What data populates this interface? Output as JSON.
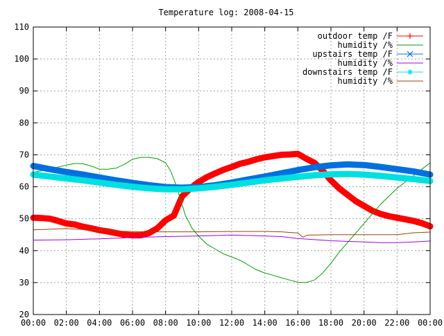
{
  "chart_data": {
    "type": "line",
    "title": "Temperature log: 2008-04-15",
    "xlabel": "",
    "ylabel": "",
    "ylim": [
      20,
      110
    ],
    "xlim": [
      0,
      24
    ],
    "grid": true,
    "legend_position": "top-right",
    "yticks": [
      {
        "value": 20,
        "label": "20"
      },
      {
        "value": 30,
        "label": "30"
      },
      {
        "value": 40,
        "label": "40"
      },
      {
        "value": 50,
        "label": "50"
      },
      {
        "value": 60,
        "label": "60"
      },
      {
        "value": 70,
        "label": "70"
      },
      {
        "value": 80,
        "label": "80"
      },
      {
        "value": 90,
        "label": "90"
      },
      {
        "value": 100,
        "label": "100"
      },
      {
        "value": 110,
        "label": "110"
      }
    ],
    "xticks": [
      {
        "value": 0,
        "label": "00:00"
      },
      {
        "value": 2,
        "label": "02:00"
      },
      {
        "value": 4,
        "label": "04:00"
      },
      {
        "value": 6,
        "label": "06:00"
      },
      {
        "value": 8,
        "label": "08:00"
      },
      {
        "value": 10,
        "label": "10:00"
      },
      {
        "value": 12,
        "label": "12:00"
      },
      {
        "value": 14,
        "label": "14:00"
      },
      {
        "value": 16,
        "label": "16:00"
      },
      {
        "value": 18,
        "label": "18:00"
      },
      {
        "value": 20,
        "label": "20:00"
      },
      {
        "value": 22,
        "label": "22:00"
      },
      {
        "value": 24,
        "label": "00:00"
      }
    ],
    "series": [
      {
        "name": "outdoor temp /F",
        "color": "#ff0000",
        "marker": "plus",
        "points": [
          [
            0,
            50.3
          ],
          [
            0.5,
            50.2
          ],
          [
            1,
            50
          ],
          [
            1.5,
            49.3
          ],
          [
            2,
            48.5
          ],
          [
            2.5,
            48.2
          ],
          [
            3,
            47.5
          ],
          [
            3.5,
            47
          ],
          [
            4,
            46.4
          ],
          [
            4.5,
            46
          ],
          [
            5,
            45.5
          ],
          [
            5.5,
            45
          ],
          [
            6,
            44.8
          ],
          [
            6.5,
            44.8
          ],
          [
            7,
            45.5
          ],
          [
            7.5,
            47
          ],
          [
            8,
            49.5
          ],
          [
            8.5,
            51
          ],
          [
            8.75,
            54
          ],
          [
            9,
            57
          ],
          [
            9.5,
            59.5
          ],
          [
            10,
            61.5
          ],
          [
            10.5,
            63
          ],
          [
            11,
            64.2
          ],
          [
            11.5,
            65.3
          ],
          [
            12,
            66.2
          ],
          [
            12.5,
            67.2
          ],
          [
            13,
            67.8
          ],
          [
            13.5,
            68.6
          ],
          [
            14,
            69.2
          ],
          [
            14.5,
            69.6
          ],
          [
            15,
            70
          ],
          [
            15.5,
            70.1
          ],
          [
            16,
            70.3
          ],
          [
            16.5,
            68.8
          ],
          [
            17,
            67.5
          ],
          [
            17.5,
            65
          ],
          [
            18,
            62
          ],
          [
            18.5,
            59.5
          ],
          [
            19,
            57.5
          ],
          [
            19.5,
            55.5
          ],
          [
            20,
            54
          ],
          [
            20.5,
            52.5
          ],
          [
            21,
            51.5
          ],
          [
            21.5,
            50.8
          ],
          [
            22,
            50.3
          ],
          [
            22.5,
            49.8
          ],
          [
            23,
            49.3
          ],
          [
            23.5,
            48.6
          ],
          [
            24,
            47.6
          ]
        ]
      },
      {
        "name": "humidity /%",
        "color": "#00a000",
        "marker": "none",
        "points": [
          [
            0,
            64.5
          ],
          [
            1,
            65.5
          ],
          [
            2,
            66.8
          ],
          [
            2.5,
            67.3
          ],
          [
            3,
            67.2
          ],
          [
            3.5,
            66.5
          ],
          [
            4,
            65.5
          ],
          [
            4.5,
            65.5
          ],
          [
            5,
            65.8
          ],
          [
            5.5,
            67
          ],
          [
            6,
            68.6
          ],
          [
            6.5,
            69.2
          ],
          [
            7,
            69.2
          ],
          [
            7.5,
            68.8
          ],
          [
            8,
            67.5
          ],
          [
            8.3,
            65
          ],
          [
            8.6,
            61
          ],
          [
            8.9,
            56
          ],
          [
            9.2,
            51
          ],
          [
            9.6,
            47
          ],
          [
            10,
            44.5
          ],
          [
            10.5,
            42
          ],
          [
            11,
            40.5
          ],
          [
            11.5,
            39
          ],
          [
            12,
            38
          ],
          [
            12.5,
            37
          ],
          [
            13,
            35.5
          ],
          [
            13.5,
            34
          ],
          [
            14,
            33
          ],
          [
            14.5,
            32.3
          ],
          [
            15,
            31.5
          ],
          [
            15.5,
            30.8
          ],
          [
            16,
            30.1
          ],
          [
            16.5,
            30
          ],
          [
            17,
            30.8
          ],
          [
            17.5,
            33
          ],
          [
            18,
            36
          ],
          [
            18.5,
            39.5
          ],
          [
            19,
            42.5
          ],
          [
            19.5,
            45.5
          ],
          [
            20,
            48.5
          ],
          [
            20.5,
            51.5
          ],
          [
            21,
            54.5
          ],
          [
            21.5,
            57
          ],
          [
            22,
            59.5
          ],
          [
            22.5,
            61.5
          ],
          [
            23,
            63.5
          ],
          [
            23.5,
            65.5
          ],
          [
            24,
            67.5
          ]
        ]
      },
      {
        "name": "upstairs temp /F",
        "color": "#0070e0",
        "marker": "cross",
        "points": [
          [
            0,
            66.5
          ],
          [
            1,
            65.5
          ],
          [
            2,
            64.6
          ],
          [
            3,
            63.8
          ],
          [
            4,
            62.9
          ],
          [
            5,
            62
          ],
          [
            6,
            61.2
          ],
          [
            7,
            60.5
          ],
          [
            8,
            59.9
          ],
          [
            9,
            59.7
          ],
          [
            10,
            59.9
          ],
          [
            11,
            60.5
          ],
          [
            12,
            61.3
          ],
          [
            13,
            62.3
          ],
          [
            14,
            63.2
          ],
          [
            15,
            64.2
          ],
          [
            16,
            65.2
          ],
          [
            17,
            66.1
          ],
          [
            18,
            66.7
          ],
          [
            19,
            67
          ],
          [
            20,
            66.8
          ],
          [
            21,
            66.2
          ],
          [
            22,
            65.5
          ],
          [
            23,
            64.8
          ],
          [
            24,
            63.8
          ]
        ]
      },
      {
        "name": "humidity /%",
        "color": "#a000e0",
        "marker": "none",
        "points": [
          [
            0,
            43.3
          ],
          [
            2,
            43.4
          ],
          [
            4,
            43.7
          ],
          [
            6,
            44.1
          ],
          [
            8,
            44.4
          ],
          [
            10,
            44.6
          ],
          [
            12,
            44.9
          ],
          [
            14,
            44.6
          ],
          [
            15,
            44.4
          ],
          [
            16,
            43.8
          ],
          [
            18,
            43.1
          ],
          [
            20,
            42.7
          ],
          [
            21,
            42.5
          ],
          [
            22,
            42.5
          ],
          [
            23,
            42.7
          ],
          [
            24,
            43
          ]
        ]
      },
      {
        "name": "downstairs temp /F",
        "color": "#00e0e0",
        "marker": "star",
        "points": [
          [
            0,
            63.8
          ],
          [
            1,
            63.2
          ],
          [
            2,
            62.6
          ],
          [
            3,
            62
          ],
          [
            4,
            61.3
          ],
          [
            5,
            60.6
          ],
          [
            6,
            60
          ],
          [
            7,
            59.5
          ],
          [
            8,
            59.2
          ],
          [
            9,
            59.2
          ],
          [
            10,
            59.5
          ],
          [
            11,
            60
          ],
          [
            12,
            60.6
          ],
          [
            13,
            61.3
          ],
          [
            14,
            62
          ],
          [
            15,
            62.6
          ],
          [
            16,
            63.1
          ],
          [
            17,
            63.6
          ],
          [
            18,
            63.9
          ],
          [
            19,
            64
          ],
          [
            20,
            63.8
          ],
          [
            21,
            63.4
          ],
          [
            22,
            62.9
          ],
          [
            23,
            62.4
          ],
          [
            24,
            61.8
          ]
        ]
      },
      {
        "name": "humidity /%",
        "color": "#a04000",
        "marker": "none",
        "points": [
          [
            0,
            46.5
          ],
          [
            1,
            46.7
          ],
          [
            2,
            46.9
          ],
          [
            3,
            46.6
          ],
          [
            4,
            46.4
          ],
          [
            5,
            46.1
          ],
          [
            6,
            46
          ],
          [
            7,
            45.9
          ],
          [
            8,
            45.9
          ],
          [
            10,
            45.9
          ],
          [
            12,
            46
          ],
          [
            14,
            46
          ],
          [
            15,
            45.9
          ],
          [
            16,
            45.5
          ],
          [
            16.3,
            44.2
          ],
          [
            16.6,
            44.9
          ],
          [
            17,
            44.9
          ],
          [
            18,
            45
          ],
          [
            20,
            45
          ],
          [
            22,
            45
          ],
          [
            23,
            45.6
          ],
          [
            24,
            45.8
          ]
        ]
      }
    ]
  }
}
